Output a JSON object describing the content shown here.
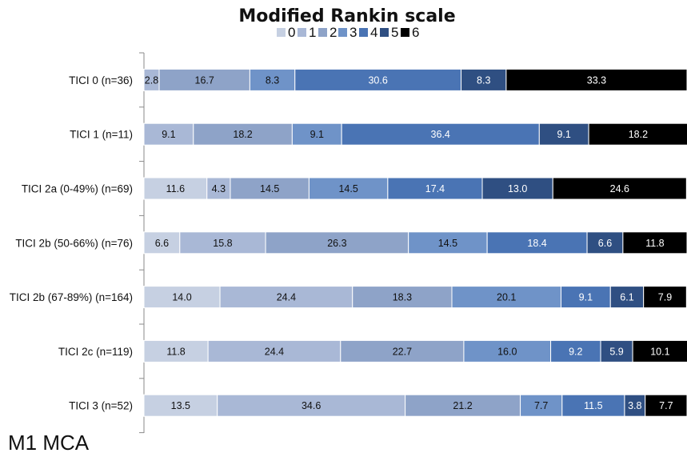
{
  "chart_data": {
    "type": "bar",
    "orientation": "horizontal",
    "stacked": true,
    "title": "Modified Rankin scale",
    "legend_position": "top",
    "footer_label": "M1 MCA",
    "xlim": [
      0,
      100
    ],
    "categories": [
      "TICI 0 (n=36)",
      "TICI 1 (n=11)",
      "TICI 2a (0-49%) (n=69)",
      "TICI 2b (50-66%) (n=76)",
      "TICI 2b (67-89%) (n=164)",
      "TICI 2c (n=119)",
      "TICI 3 (n=52)"
    ],
    "series": [
      {
        "name": "0",
        "color": "#c6d0e2",
        "values": [
          0.0,
          0.0,
          11.6,
          6.6,
          14.0,
          11.8,
          13.5
        ],
        "labels": [
          "0.0",
          "0.0",
          "11.6",
          "6.6",
          "14.0",
          "11.8",
          "13.5"
        ]
      },
      {
        "name": "1",
        "color": "#a9b8d6",
        "values": [
          2.8,
          9.1,
          4.3,
          15.8,
          24.4,
          24.4,
          34.6
        ],
        "labels": [
          "2.8",
          "9.1",
          "4.3",
          "15.8",
          "24.4",
          "24.4",
          "34.6"
        ]
      },
      {
        "name": "2",
        "color": "#8ea3c8",
        "values": [
          16.7,
          18.2,
          14.5,
          26.3,
          18.3,
          22.7,
          21.2
        ],
        "labels": [
          "16.7",
          "18.2",
          "14.5",
          "26.3",
          "18.3",
          "22.7",
          "21.2"
        ]
      },
      {
        "name": "3",
        "color": "#6f93c8",
        "values": [
          8.3,
          9.1,
          14.5,
          14.5,
          20.1,
          16.0,
          7.7
        ],
        "labels": [
          "8.3",
          "9.1",
          "14.5",
          "14.5",
          "20.1",
          "16.0",
          "7.7"
        ]
      },
      {
        "name": "4",
        "color": "#4a74b4",
        "values": [
          30.6,
          36.4,
          17.4,
          18.4,
          9.1,
          9.2,
          11.5
        ],
        "labels": [
          "30.6",
          "36.4",
          "17.4",
          "18.4",
          "9.1",
          "9.2",
          "11.5"
        ]
      },
      {
        "name": "5",
        "color": "#2f4f82",
        "values": [
          8.3,
          9.1,
          13.0,
          6.6,
          6.1,
          5.9,
          3.8
        ],
        "labels": [
          "8.3",
          "9.1",
          "13.0",
          "6.6",
          "6.1",
          "5.9",
          "3.8"
        ]
      },
      {
        "name": "6",
        "color": "#000000",
        "values": [
          33.3,
          18.2,
          24.6,
          11.8,
          7.9,
          10.1,
          7.7
        ],
        "labels": [
          "33.3",
          "18.2",
          "24.6",
          "11.8",
          "7.9",
          "10.1",
          "7.7"
        ]
      }
    ]
  }
}
